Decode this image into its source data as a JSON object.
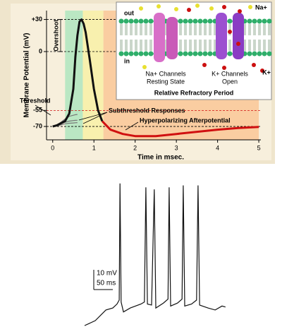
{
  "chart_data": [
    {
      "type": "line",
      "y_label": "Membrane Potential (mV)",
      "x_label": "Time in msec.",
      "xlim": [
        -0.15,
        5.05
      ],
      "ylim": [
        -82.5,
        38.3
      ],
      "xticks": [
        0,
        1,
        2,
        3,
        4,
        5
      ],
      "yticks": [
        {
          "value": 30,
          "label": "+30"
        },
        0,
        -55,
        -70
      ],
      "tick_line_colors": [
        "#000000",
        "#000000",
        "#d01010",
        "#000000"
      ],
      "bands": [
        {
          "from": 0.3,
          "to": 0.73,
          "color": "#b3e6c0"
        },
        {
          "from": 0.73,
          "to": 1.23,
          "color": "#f7efa8"
        },
        {
          "from": 1.23,
          "to": 5.0,
          "color": "#f9c99a"
        }
      ],
      "x": [
        0,
        0.1,
        0.2,
        0.3,
        0.4,
        0.5,
        0.55,
        0.6,
        0.65,
        0.7,
        0.75,
        0.8,
        0.9,
        1.0,
        1.1,
        1.2,
        1.4,
        1.7,
        2.0,
        2.5,
        3.0,
        3.5,
        4.0,
        4.5,
        5.0
      ],
      "series": [
        {
          "color": "#111111",
          "values": [
            -70,
            -69,
            -67,
            -65,
            -58,
            -35,
            -5,
            15,
            28,
            30,
            26,
            18,
            -8,
            -35,
            -55,
            -65,
            null,
            null,
            null,
            null,
            null,
            null,
            null,
            null,
            null
          ]
        },
        {
          "color": "#d01010",
          "values": [
            null,
            null,
            null,
            null,
            null,
            null,
            null,
            null,
            null,
            null,
            null,
            null,
            null,
            null,
            null,
            -65,
            -73,
            -77,
            -79,
            -79,
            -77,
            -75,
            -73,
            -71.5,
            -70.5
          ]
        },
        {
          "color": "#777777",
          "values": [
            -70,
            -69,
            -67.5,
            -66,
            -65,
            -64.5,
            -64.3,
            -64.2,
            null,
            null,
            null,
            null,
            null,
            null,
            null,
            null,
            null,
            null,
            null,
            null,
            null,
            null,
            null,
            null,
            null
          ]
        },
        {
          "color": "#777777",
          "values": [
            -70,
            -69.5,
            -68.5,
            -67.5,
            -67,
            -66.7,
            -66.5,
            -66.4,
            null,
            null,
            null,
            null,
            null,
            null,
            null,
            null,
            null,
            null,
            null,
            null,
            null,
            null,
            null,
            null,
            null
          ]
        },
        {
          "color": "#777777",
          "values": [
            -70,
            -68.5,
            -66,
            -63,
            -60.5,
            -59.5,
            -59,
            -58.8,
            null,
            null,
            null,
            null,
            null,
            null,
            null,
            null,
            null,
            null,
            null,
            null,
            null,
            null,
            null,
            null,
            null
          ]
        }
      ],
      "annotations": [
        "Overshoot",
        "Threshold",
        "Subthreshold Responses",
        "Hyperpolarizing Afterpotential"
      ],
      "inset": {
        "out": "out",
        "in": "in",
        "na": "Na+",
        "k": "K+",
        "na_channels": "Na+ Channels",
        "na_state": "Resting State",
        "k_channels": "K+ Channels",
        "k_state": "Open",
        "caption": "Relative Refractory Period"
      }
    },
    {
      "type": "trace",
      "color": "#111111",
      "scale_bar": {
        "y": 10,
        "y_label": "10 mV",
        "x": 50,
        "x_label": "50 ms"
      },
      "x": [
        0,
        28,
        56,
        74,
        85,
        91,
        93,
        96,
        102,
        120,
        148,
        157,
        161,
        165,
        176,
        183,
        187,
        207,
        219,
        222,
        226,
        244,
        256,
        259,
        263,
        281,
        294,
        298,
        302,
        324,
        343,
        361,
        370
      ],
      "values": [
        -72.9,
        -70.4,
        -65,
        -64,
        -62,
        -60,
        -1,
        -61,
        -66,
        -64,
        -62,
        -61,
        -3,
        -62,
        -62.5,
        -4,
        -64,
        -61.5,
        -59.5,
        -3,
        -63,
        -61.5,
        -59.5,
        -2,
        -63,
        -62,
        -60,
        -2,
        -62.5,
        -64,
        -65,
        -63,
        -63.5
      ]
    }
  ]
}
